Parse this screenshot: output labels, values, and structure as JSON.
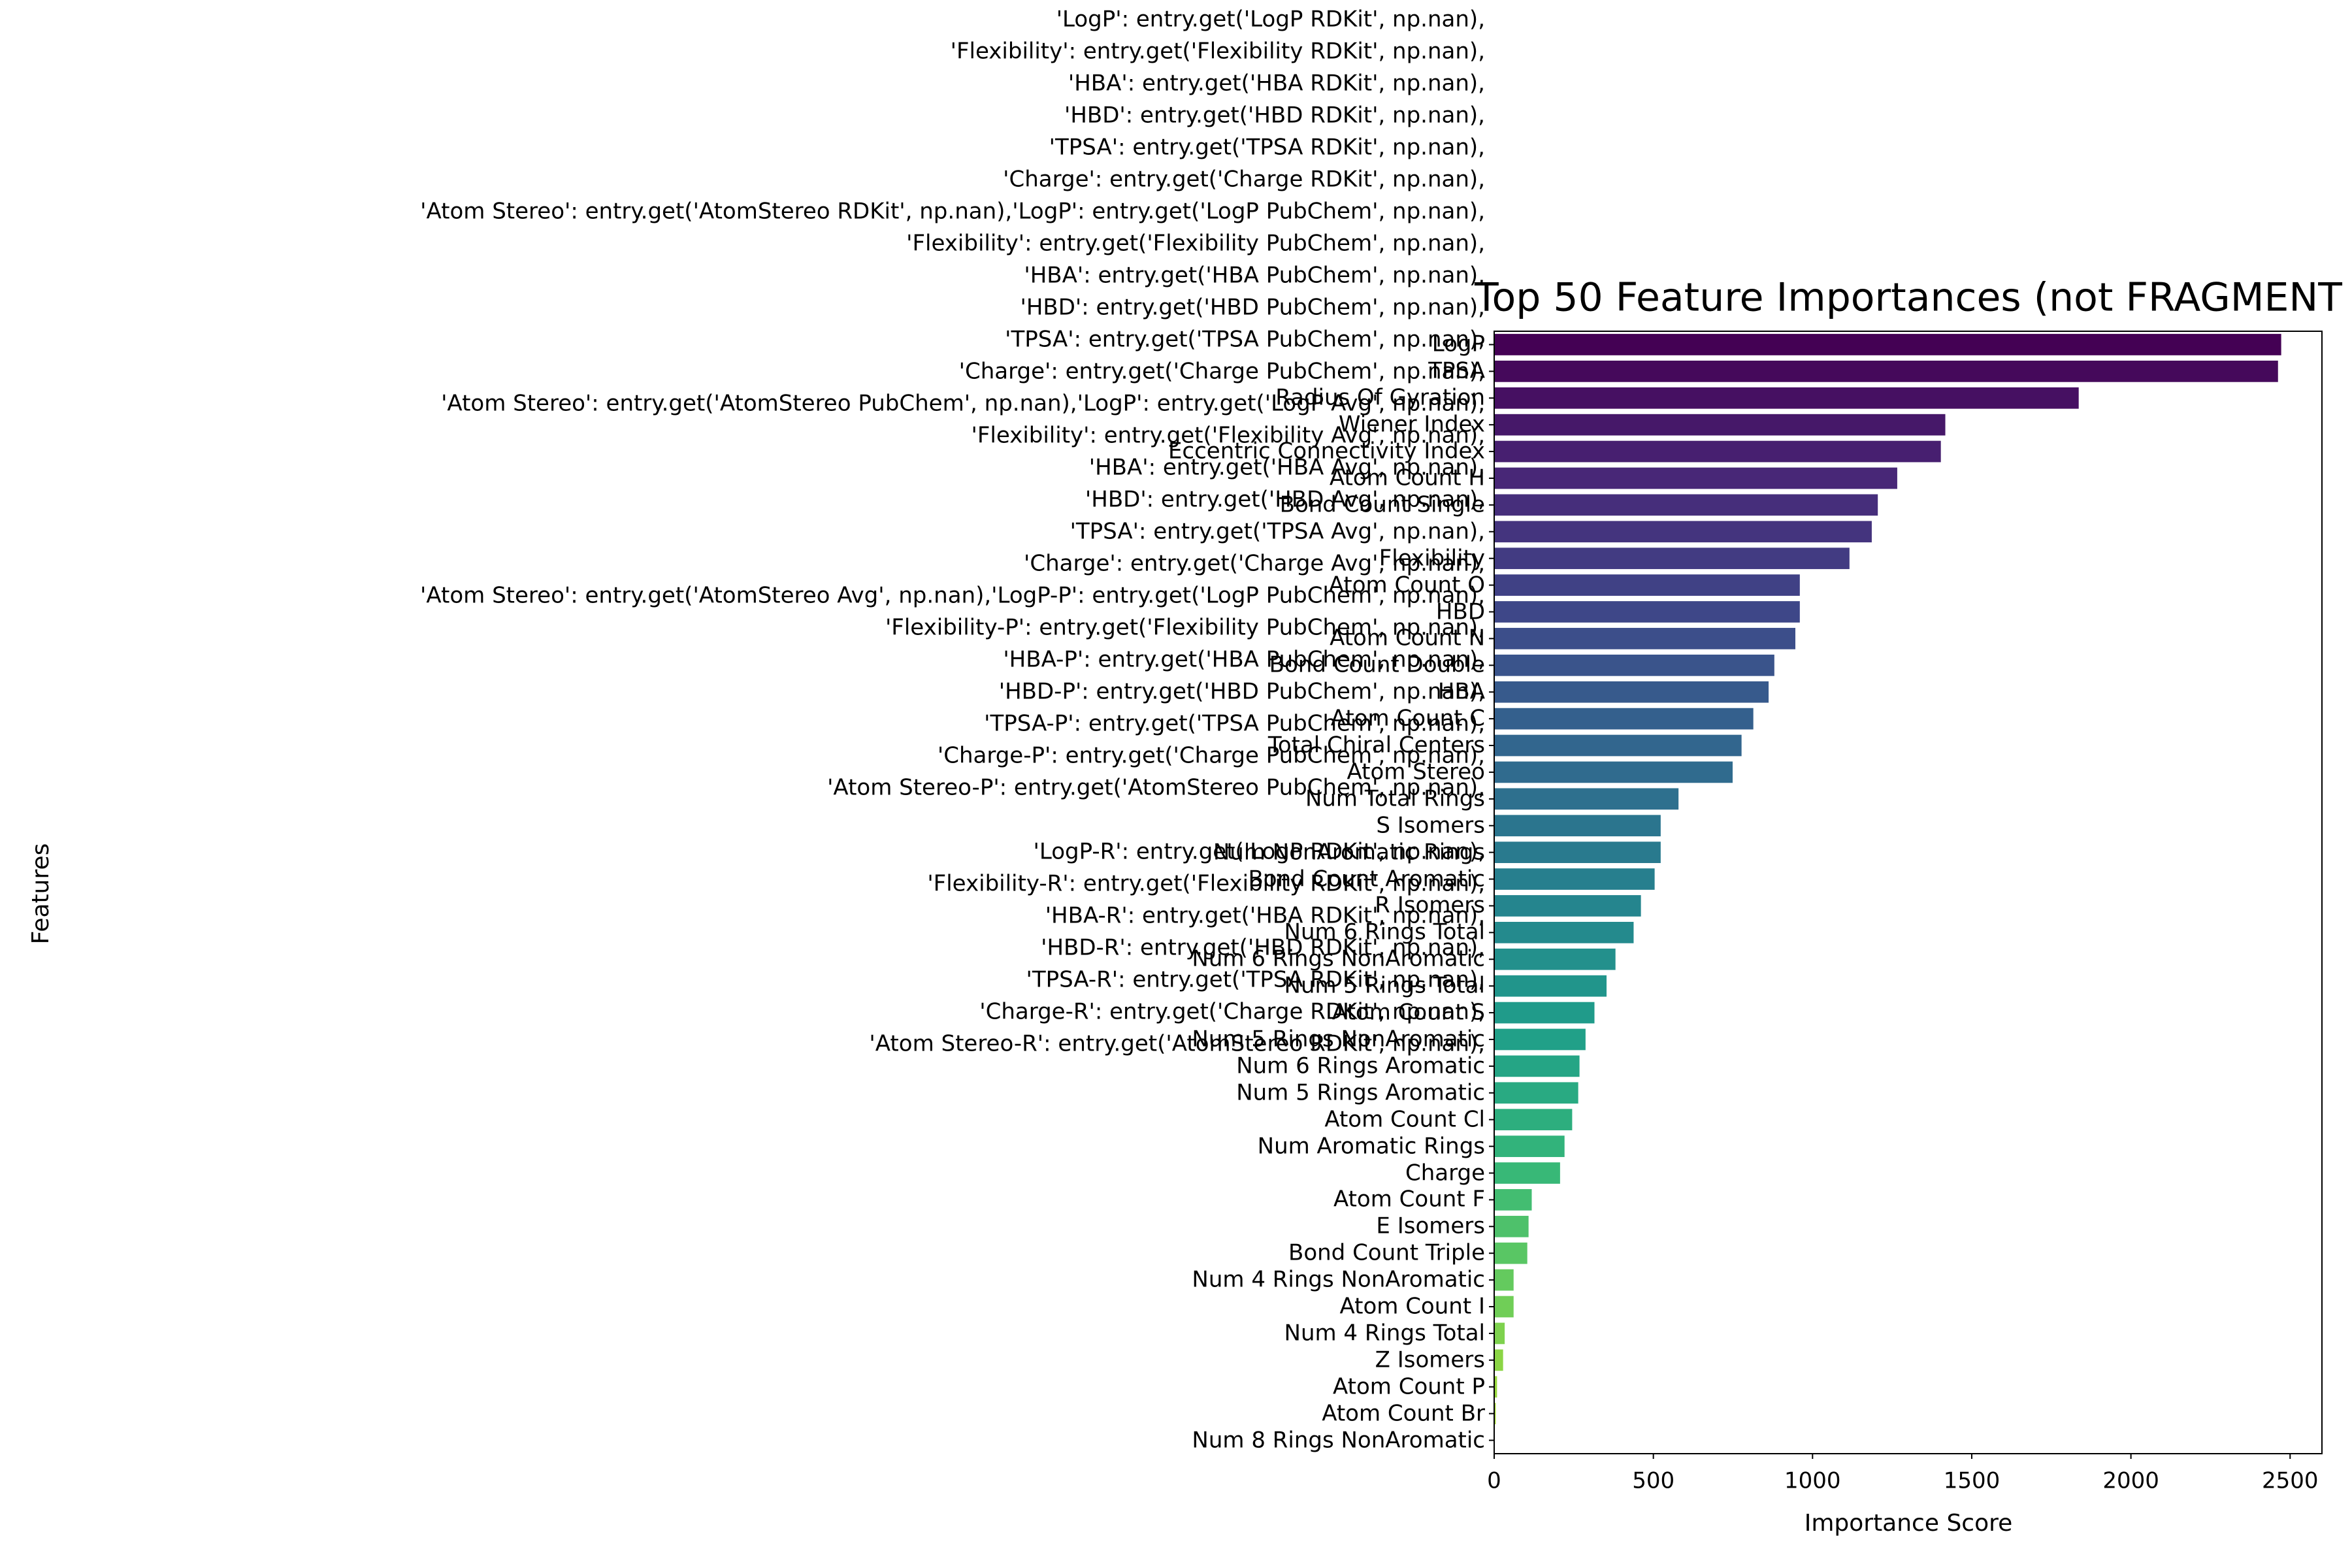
{
  "chart_data": {
    "type": "barh",
    "title": "Top 50 Feature Importances (not FRAGMENT",
    "xlabel": "Importance Score",
    "ylabel": "Features",
    "categories": [
      "LogP",
      "TPSA",
      "Radius Of Gyration",
      "Wiener Index",
      "Eccentric Connectivity Index",
      "Atom Count H",
      "Bond Count Single",
      "'LogP': entry.get('LogP RDKit', np.nan),\n'Flexibility': entry.get('Flexibility RDKit', np.nan),\n'HBA': entry.get('HBA RDKit', np.nan),\n'HBD': entry.get('HBD RDKit', np.nan),\n'TPSA': entry.get('TPSA RDKit', np.nan),\n'Charge': entry.get('Charge RDKit', np.nan),\n'Atom Stereo': entry.get('AtomStereo RDKit', np.nan),'LogP': entry.get('LogP PubChem', np.nan),\n'Flexibility': entry.get('Flexibility PubChem', np.nan),\n'HBA': entry.get('HBA PubChem', np.nan),\n'HBD': entry.get('HBD PubChem', np.nan),\n'TPSA': entry.get('TPSA PubChem', np.nan),\n'Charge': entry.get('Charge PubChem', np.nan),\n'Atom Stereo': entry.get('AtomStereo PubChem', np.nan),'LogP': entry.get('LogP Avg', np.nan),\n'Flexibility': entry.get('Flexibility Avg', np.nan),\n'HBA': entry.get('HBA Avg', np.nan),\n'HBD': entry.get('HBD Avg', np.nan),\n'TPSA': entry.get('TPSA Avg', np.nan),\n'Charge': entry.get('Charge Avg', np.nan),\n'Atom Stereo': entry.get('AtomStereo Avg', np.nan),'LogP-P': entry.get('LogP PubChem', np.nan),\n'Flexibility-P': entry.get('Flexibility PubChem', np.nan),\n'HBA-P': entry.get('HBA PubChem', np.nan),\n'HBD-P': entry.get('HBD PubChem', np.nan),\n'TPSA-P': entry.get('TPSA PubChem', np.nan),\n'Charge-P': entry.get('Charge PubChem', np.nan),\n'Atom Stereo-P': entry.get('AtomStereo PubChem', np.nan),\n\n'LogP-R': entry.get('LogP RDKit', np.nan),\n'Flexibility-R': entry.get('Flexibility RDKit', np.nan),\n'HBA-R': entry.get('HBA RDKit', np.nan),\n'HBD-R': entry.get('HBD RDKit', np.nan),\n'TPSA-R': entry.get('TPSA RDKit', np.nan),\n'Charge-R': entry.get('Charge RDKit', np.nan),\n'Atom Stereo-R': entry.get('AtomStereo RDKit', np.nan),",
      "Flexibility",
      "Atom Count O",
      "HBD",
      "Atom Count N",
      "Bond Count Double",
      "HBA",
      "Atom Count C",
      "Total Chiral Centers",
      "Atom Stereo",
      "Num Total Rings",
      "S Isomers",
      "Num NonAromatic Rings",
      "Bond Count Aromatic",
      "R Isomers",
      "Num 6 Rings Total",
      "Num 6 Rings NonAromatic",
      "Num 5 Rings Total",
      "Atom Count S",
      "Num 5 Rings NonAromatic",
      "Num 6 Rings Aromatic",
      "Num 5 Rings Aromatic",
      "Atom Count Cl",
      "Num Aromatic Rings",
      "Charge",
      "Atom Count F",
      "E Isomers",
      "Bond Count Triple",
      "Num 4 Rings NonAromatic",
      "Atom Count I",
      "Num 4 Rings Total",
      "Z Isomers",
      "Atom Count P",
      "Atom Count Br",
      "Num 8 Rings NonAromatic"
    ],
    "values": [
      2472,
      2462,
      1836,
      1417,
      1403,
      1266,
      1205,
      1186,
      1116,
      960,
      960,
      946,
      880,
      862,
      814,
      777,
      749,
      579,
      523,
      523,
      504,
      461,
      438,
      381,
      353,
      315,
      287,
      268,
      264,
      245,
      221,
      207,
      118,
      108,
      104,
      61,
      61,
      33,
      28,
      9,
      5,
      2
    ],
    "palette": [
      "#440154",
      "#482878",
      "#3e4989",
      "#31688e",
      "#26828e",
      "#1f9e89",
      "#35b779",
      "#6ece58",
      "#b5de2b"
    ],
    "xlim": [
      0,
      2600
    ],
    "xticks": [
      0,
      500,
      1000,
      1500,
      2000,
      2500
    ]
  }
}
